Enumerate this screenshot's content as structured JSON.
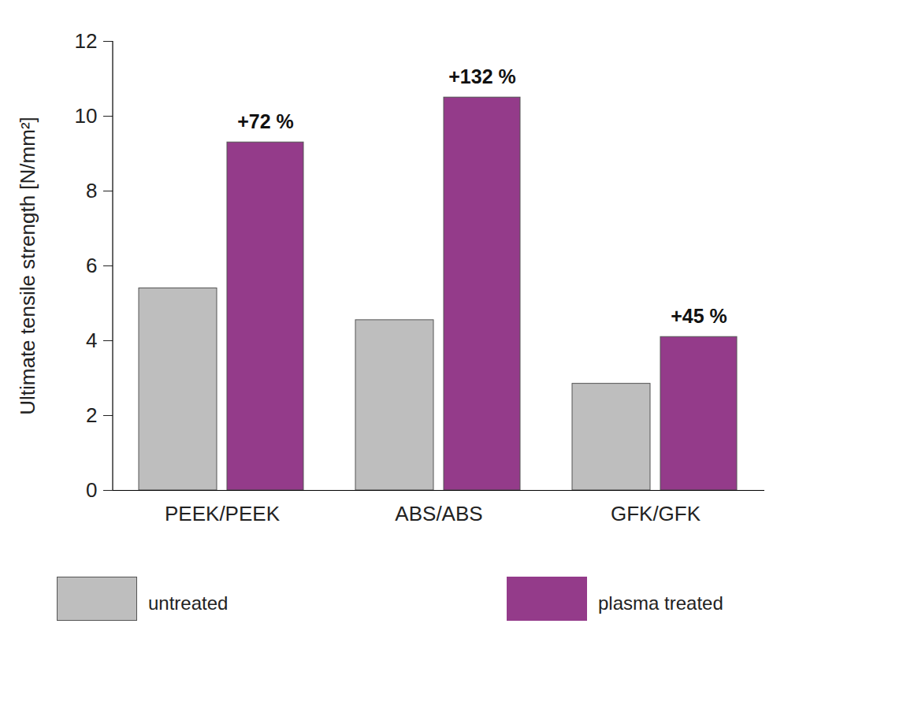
{
  "chart_data": {
    "type": "bar",
    "categories": [
      "PEEK/PEEK",
      "ABS/ABS",
      "GFK/GFK"
    ],
    "series": [
      {
        "name": "untreated",
        "color": "#bebebe",
        "values": [
          5.4,
          4.55,
          2.85
        ]
      },
      {
        "name": "plasma treated",
        "color": "#943b8a",
        "values": [
          9.3,
          10.5,
          4.1
        ],
        "annotations": [
          "+72 %",
          "+132 %",
          "+45 %"
        ]
      }
    ],
    "y_label": "Ultimate tensile strength [N/mm²]",
    "ylim": [
      0,
      12
    ],
    "yticks": [
      0,
      2,
      4,
      6,
      8,
      10,
      12
    ],
    "grid": false,
    "legend": "bottom"
  }
}
